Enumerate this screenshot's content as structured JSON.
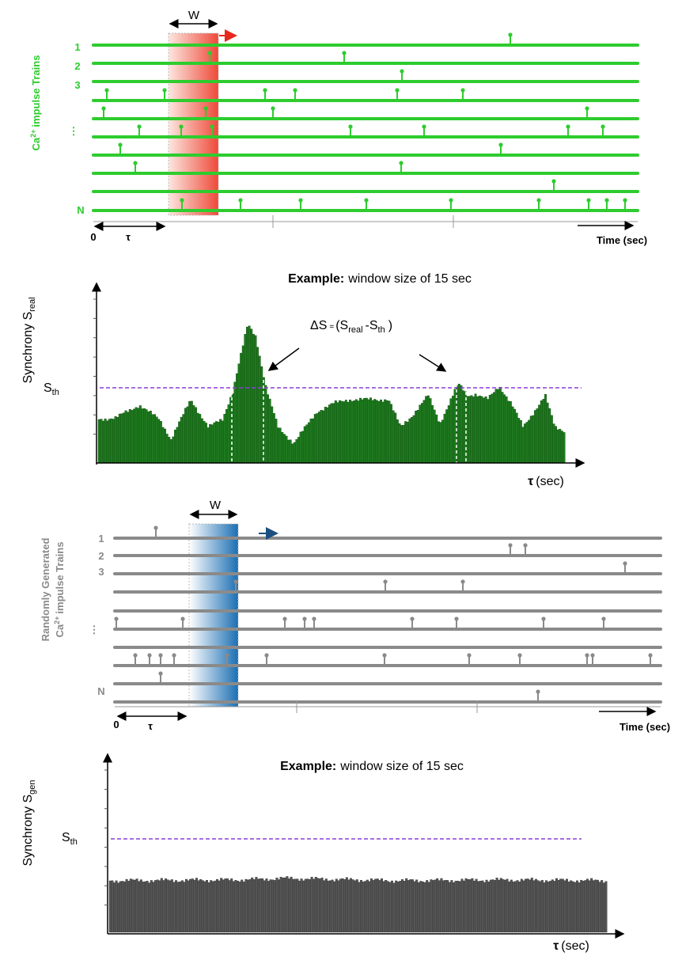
{
  "real_trains": {
    "window": "W",
    "label": {
      "base": "Ca",
      "sup": "2+",
      "rest": "impulse Trains"
    },
    "rows": [
      "1",
      "2",
      "3",
      "⋮",
      "N"
    ],
    "origin": "0",
    "shift": "τ",
    "time": "Time (sec)"
  },
  "real_synchrony": {
    "title": {
      "bold": "Example:",
      "rest": "window size of 15 sec"
    },
    "y_label": {
      "base": "Synchrony S",
      "sub": "real"
    },
    "threshold": {
      "base": "S",
      "sub": "th"
    },
    "annotation": {
      "delta": "ΔS",
      "eq": "=",
      "a": "(S",
      "a_sub": "real",
      "b": "-S",
      "b_sub": "th",
      "close": ")"
    },
    "x_label": {
      "tau": "τ",
      "unit": "(sec)"
    }
  },
  "random_trains": {
    "window": "W",
    "label": {
      "line1": "Randomly Generated",
      "base": "Ca",
      "sup": "2+",
      "rest": "impulse Trains"
    },
    "rows": [
      "1",
      "2",
      "3",
      "⋮",
      "N"
    ],
    "origin": "0",
    "shift": "τ",
    "time": "Time (sec)"
  },
  "random_synchrony": {
    "title": {
      "bold": "Example:",
      "rest": "window size of 15 sec"
    },
    "y_label": {
      "base": "Synchrony S",
      "sub": "gen"
    },
    "threshold": {
      "base": "S",
      "sub": "th"
    },
    "x_label": {
      "tau": "τ",
      "unit": "(sec)"
    }
  }
}
